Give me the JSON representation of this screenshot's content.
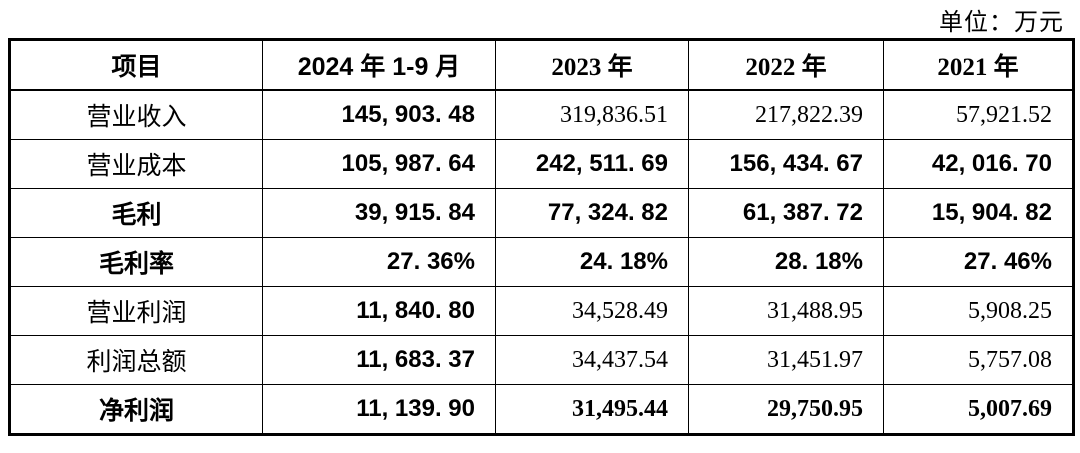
{
  "unit_label": "单位：万元",
  "table": {
    "columns": [
      {
        "label": "项目",
        "style": "song-bold"
      },
      {
        "label": "2024 年 1-9 月",
        "style": "hei"
      },
      {
        "label": "2023 年",
        "style": "song-bold"
      },
      {
        "label": "2022 年",
        "style": "song-bold"
      },
      {
        "label": "2021 年",
        "style": "song-bold"
      }
    ],
    "rows": [
      {
        "label": "营业收入",
        "bold_label": false,
        "values": [
          "145, 903. 48",
          "319,836.51",
          "217,822.39",
          "57,921.52"
        ],
        "value_styles": [
          "hei",
          "song",
          "song",
          "song"
        ]
      },
      {
        "label": "营业成本",
        "bold_label": false,
        "values": [
          "105, 987. 64",
          "242, 511. 69",
          "156, 434. 67",
          "42, 016. 70"
        ],
        "value_styles": [
          "hei",
          "hei",
          "hei",
          "hei"
        ]
      },
      {
        "label": "毛利",
        "bold_label": true,
        "values": [
          "39, 915. 84",
          "77, 324. 82",
          "61, 387. 72",
          "15, 904. 82"
        ],
        "value_styles": [
          "hei",
          "hei",
          "hei",
          "hei"
        ]
      },
      {
        "label": "毛利率",
        "bold_label": true,
        "values": [
          "27. 36%",
          "24. 18%",
          "28. 18%",
          "27. 46%"
        ],
        "value_styles": [
          "hei",
          "hei",
          "hei",
          "hei"
        ]
      },
      {
        "label": "营业利润",
        "bold_label": false,
        "values": [
          "11, 840. 80",
          "34,528.49",
          "31,488.95",
          "5,908.25"
        ],
        "value_styles": [
          "hei",
          "song",
          "song",
          "song"
        ]
      },
      {
        "label": "利润总额",
        "bold_label": false,
        "values": [
          "11, 683. 37",
          "34,437.54",
          "31,451.97",
          "5,757.08"
        ],
        "value_styles": [
          "hei",
          "song",
          "song",
          "song"
        ]
      },
      {
        "label": "净利润",
        "bold_label": true,
        "values": [
          "11, 139. 90",
          "31,495.44",
          "29,750.95",
          "5,007.69"
        ],
        "value_styles": [
          "hei",
          "song-bold",
          "song-bold",
          "song-bold"
        ]
      }
    ]
  }
}
